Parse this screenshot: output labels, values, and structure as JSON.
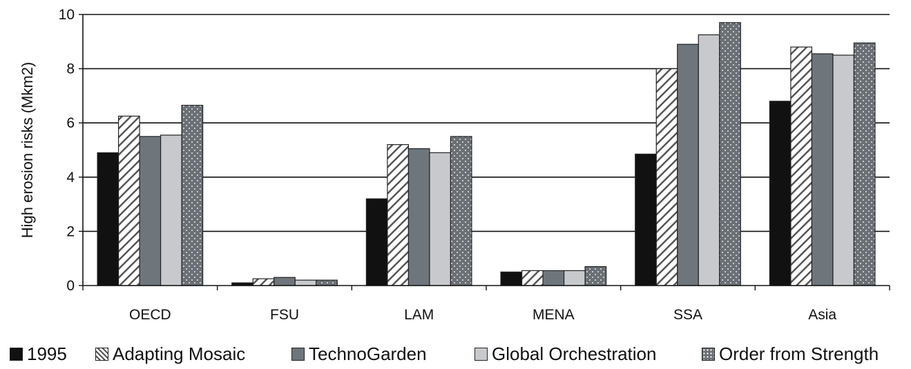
{
  "chart_data": {
    "type": "bar",
    "ylabel": "High erosion risks (Mkm2)",
    "xlabel": "",
    "ylim": [
      0,
      10
    ],
    "yticks": [
      0,
      2,
      4,
      6,
      8,
      10
    ],
    "grid": true,
    "legend_position": "bottom",
    "categories": [
      "OECD",
      "FSU",
      "LAM",
      "MENA",
      "SSA",
      "Asia"
    ],
    "series": [
      {
        "name": "1995",
        "values": [
          4.9,
          0.1,
          3.2,
          0.5,
          4.85,
          6.8
        ],
        "pattern": "solid",
        "color": "#111111"
      },
      {
        "name": "Adapting Mosaic",
        "values": [
          6.25,
          0.25,
          5.2,
          0.55,
          8.0,
          8.8
        ],
        "pattern": "diagonal-hatch",
        "color": "#ffffff"
      },
      {
        "name": "TechnoGarden",
        "values": [
          5.5,
          0.3,
          5.05,
          0.55,
          8.9,
          8.55
        ],
        "pattern": "solid",
        "color": "#6e767c"
      },
      {
        "name": "Global Orchestration",
        "values": [
          5.55,
          0.2,
          4.9,
          0.55,
          9.25,
          8.5
        ],
        "pattern": "solid",
        "color": "#c7c9cc"
      },
      {
        "name": "Order from Strength",
        "values": [
          6.65,
          0.2,
          5.5,
          0.7,
          9.7,
          8.95
        ],
        "pattern": "dotted",
        "color": "#6a7075"
      }
    ]
  }
}
